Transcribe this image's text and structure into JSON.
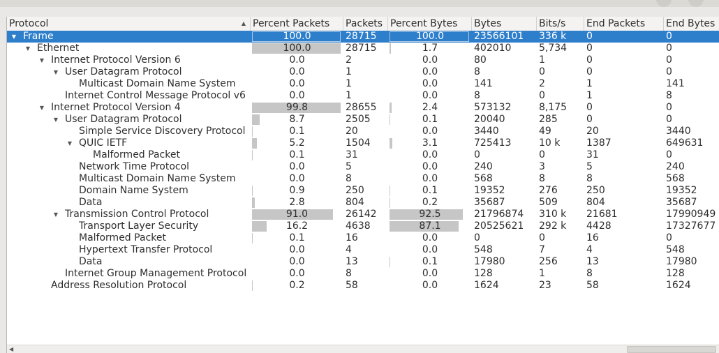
{
  "columns": [
    "Protocol",
    "Percent Packets",
    "Packets",
    "Percent Bytes",
    "Bytes",
    "Bits/s",
    "End Packets",
    "End Bytes"
  ],
  "rows": [
    {
      "name": "Frame",
      "depth": 0,
      "expanded": true,
      "selected": true,
      "percent_packets": "100.0",
      "percent_packets_value": 100.0,
      "packets": "28715",
      "percent_bytes": "100.0",
      "percent_bytes_value": 100.0,
      "bytes": "23566101",
      "bits_s": "336 k",
      "end_packets": "0",
      "end_bytes": "0"
    },
    {
      "name": "Ethernet",
      "depth": 1,
      "expanded": true,
      "percent_packets": "100.0",
      "percent_packets_value": 100.0,
      "packets": "28715",
      "percent_bytes": "1.7",
      "percent_bytes_value": 1.7,
      "bytes": "402010",
      "bits_s": "5,734",
      "end_packets": "0",
      "end_bytes": "0"
    },
    {
      "name": "Internet Protocol Version 6",
      "depth": 2,
      "expanded": true,
      "percent_packets": "0.0",
      "percent_packets_value": 0.0,
      "packets": "2",
      "percent_bytes": "0.0",
      "percent_bytes_value": 0.0,
      "bytes": "80",
      "bits_s": "1",
      "end_packets": "0",
      "end_bytes": "0"
    },
    {
      "name": "User Datagram Protocol",
      "depth": 3,
      "expanded": true,
      "percent_packets": "0.0",
      "percent_packets_value": 0.0,
      "packets": "1",
      "percent_bytes": "0.0",
      "percent_bytes_value": 0.0,
      "bytes": "8",
      "bits_s": "0",
      "end_packets": "0",
      "end_bytes": "0"
    },
    {
      "name": "Multicast Domain Name System",
      "depth": 4,
      "percent_packets": "0.0",
      "percent_packets_value": 0.0,
      "packets": "1",
      "percent_bytes": "0.0",
      "percent_bytes_value": 0.0,
      "bytes": "141",
      "bits_s": "2",
      "end_packets": "1",
      "end_bytes": "141"
    },
    {
      "name": "Internet Control Message Protocol v6",
      "depth": 3,
      "percent_packets": "0.0",
      "percent_packets_value": 0.0,
      "packets": "1",
      "percent_bytes": "0.0",
      "percent_bytes_value": 0.0,
      "bytes": "8",
      "bits_s": "0",
      "end_packets": "1",
      "end_bytes": "8"
    },
    {
      "name": "Internet Protocol Version 4",
      "depth": 2,
      "expanded": true,
      "percent_packets": "99.8",
      "percent_packets_value": 99.8,
      "packets": "28655",
      "percent_bytes": "2.4",
      "percent_bytes_value": 2.4,
      "bytes": "573132",
      "bits_s": "8,175",
      "end_packets": "0",
      "end_bytes": "0"
    },
    {
      "name": "User Datagram Protocol",
      "depth": 3,
      "expanded": true,
      "percent_packets": "8.7",
      "percent_packets_value": 8.7,
      "packets": "2505",
      "percent_bytes": "0.1",
      "percent_bytes_value": 0.1,
      "bytes": "20040",
      "bits_s": "285",
      "end_packets": "0",
      "end_bytes": "0"
    },
    {
      "name": "Simple Service Discovery Protocol",
      "depth": 4,
      "percent_packets": "0.1",
      "percent_packets_value": 0.1,
      "packets": "20",
      "percent_bytes": "0.0",
      "percent_bytes_value": 0.0,
      "bytes": "3440",
      "bits_s": "49",
      "end_packets": "20",
      "end_bytes": "3440"
    },
    {
      "name": "QUIC IETF",
      "depth": 4,
      "expanded": true,
      "percent_packets": "5.2",
      "percent_packets_value": 5.2,
      "packets": "1504",
      "percent_bytes": "3.1",
      "percent_bytes_value": 3.1,
      "bytes": "725413",
      "bits_s": "10 k",
      "end_packets": "1387",
      "end_bytes": "649631"
    },
    {
      "name": "Malformed Packet",
      "depth": 5,
      "percent_packets": "0.1",
      "percent_packets_value": 0.1,
      "packets": "31",
      "percent_bytes": "0.0",
      "percent_bytes_value": 0.0,
      "bytes": "0",
      "bits_s": "0",
      "end_packets": "31",
      "end_bytes": "0"
    },
    {
      "name": "Network Time Protocol",
      "depth": 4,
      "percent_packets": "0.0",
      "percent_packets_value": 0.0,
      "packets": "5",
      "percent_bytes": "0.0",
      "percent_bytes_value": 0.0,
      "bytes": "240",
      "bits_s": "3",
      "end_packets": "5",
      "end_bytes": "240"
    },
    {
      "name": "Multicast Domain Name System",
      "depth": 4,
      "percent_packets": "0.0",
      "percent_packets_value": 0.0,
      "packets": "8",
      "percent_bytes": "0.0",
      "percent_bytes_value": 0.0,
      "bytes": "568",
      "bits_s": "8",
      "end_packets": "8",
      "end_bytes": "568"
    },
    {
      "name": "Domain Name System",
      "depth": 4,
      "percent_packets": "0.9",
      "percent_packets_value": 0.9,
      "packets": "250",
      "percent_bytes": "0.1",
      "percent_bytes_value": 0.1,
      "bytes": "19352",
      "bits_s": "276",
      "end_packets": "250",
      "end_bytes": "19352"
    },
    {
      "name": "Data",
      "depth": 4,
      "percent_packets": "2.8",
      "percent_packets_value": 2.8,
      "packets": "804",
      "percent_bytes": "0.2",
      "percent_bytes_value": 0.2,
      "bytes": "35687",
      "bits_s": "509",
      "end_packets": "804",
      "end_bytes": "35687"
    },
    {
      "name": "Transmission Control Protocol",
      "depth": 3,
      "expanded": true,
      "percent_packets": "91.0",
      "percent_packets_value": 91.0,
      "packets": "26142",
      "percent_bytes": "92.5",
      "percent_bytes_value": 92.5,
      "bytes": "21796874",
      "bits_s": "310 k",
      "end_packets": "21681",
      "end_bytes": "17990949"
    },
    {
      "name": "Transport Layer Security",
      "depth": 4,
      "percent_packets": "16.2",
      "percent_packets_value": 16.2,
      "packets": "4638",
      "percent_bytes": "87.1",
      "percent_bytes_value": 87.1,
      "bytes": "20525621",
      "bits_s": "292 k",
      "end_packets": "4428",
      "end_bytes": "17327677"
    },
    {
      "name": "Malformed Packet",
      "depth": 4,
      "percent_packets": "0.1",
      "percent_packets_value": 0.1,
      "packets": "16",
      "percent_bytes": "0.0",
      "percent_bytes_value": 0.0,
      "bytes": "0",
      "bits_s": "0",
      "end_packets": "16",
      "end_bytes": "0"
    },
    {
      "name": "Hypertext Transfer Protocol",
      "depth": 4,
      "percent_packets": "0.0",
      "percent_packets_value": 0.0,
      "packets": "4",
      "percent_bytes": "0.0",
      "percent_bytes_value": 0.0,
      "bytes": "548",
      "bits_s": "7",
      "end_packets": "4",
      "end_bytes": "548"
    },
    {
      "name": "Data",
      "depth": 4,
      "percent_packets": "0.0",
      "percent_packets_value": 0.0,
      "packets": "13",
      "percent_bytes": "0.1",
      "percent_bytes_value": 0.1,
      "bytes": "17980",
      "bits_s": "256",
      "end_packets": "13",
      "end_bytes": "17980"
    },
    {
      "name": "Internet Group Management Protocol",
      "depth": 3,
      "percent_packets": "0.0",
      "percent_packets_value": 0.0,
      "packets": "8",
      "percent_bytes": "0.0",
      "percent_bytes_value": 0.0,
      "bytes": "128",
      "bits_s": "1",
      "end_packets": "8",
      "end_bytes": "128"
    },
    {
      "name": "Address Resolution Protocol",
      "depth": 2,
      "percent_packets": "0.2",
      "percent_packets_value": 0.2,
      "packets": "58",
      "percent_bytes": "0.0",
      "percent_bytes_value": 0.0,
      "bytes": "1624",
      "bits_s": "23",
      "end_packets": "58",
      "end_bytes": "1624"
    }
  ],
  "icons": {
    "expanded": "triangle-down-icon",
    "sort": "sort-ascending-icon",
    "scroll_left": "scroll-left-icon"
  },
  "colors": {
    "selection": "#2e7fcb",
    "bar": "#c6c6c6",
    "header_bg": "#f4f3f2"
  }
}
